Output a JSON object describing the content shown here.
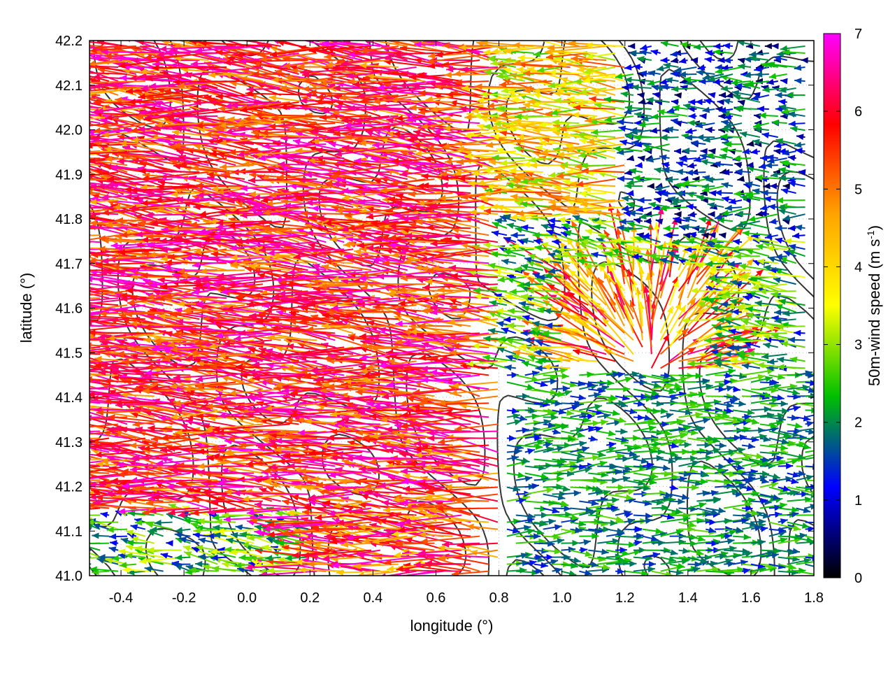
{
  "chart_data": {
    "type": "vector field with contour overlay",
    "xlabel": "longitude (°)",
    "ylabel": "latitude (°)",
    "xlim": [
      -0.5,
      1.8
    ],
    "ylim": [
      41.0,
      42.2
    ],
    "x_ticks": [
      -0.4,
      -0.2,
      0.0,
      0.2,
      0.4,
      0.6,
      0.8,
      1.0,
      1.2,
      1.4,
      1.6,
      1.8
    ],
    "x_tick_labels": [
      "-0.4",
      "-0.2",
      "0.0",
      "0.2",
      "0.4",
      "0.6",
      "0.8",
      "1.0",
      "1.2",
      "1.4",
      "1.6",
      "1.8"
    ],
    "y_ticks": [
      41.0,
      41.1,
      41.2,
      41.3,
      41.4,
      41.5,
      41.6,
      41.7,
      41.8,
      41.9,
      42.0,
      42.1,
      42.2
    ],
    "y_tick_labels": [
      "41.0",
      "41.1",
      "41.2",
      "41.3",
      "41.4",
      "41.5",
      "41.6",
      "41.7",
      "41.8",
      "41.9",
      "42.0",
      "42.1",
      "42.2"
    ],
    "grid": "dotted",
    "colorbar": {
      "label_main": "50m-wind speed (m s",
      "label_sup": "-1",
      "label_end": ")",
      "range": [
        0,
        7
      ],
      "ticks": [
        0,
        1,
        2,
        3,
        4,
        5,
        6,
        7
      ],
      "tick_labels": [
        "0",
        "1",
        "2",
        "3",
        "4",
        "5",
        "6",
        "7"
      ],
      "colors": [
        "#000000",
        "#0000ff",
        "#00c000",
        "#ffff00",
        "#ffa500",
        "#ff0000",
        "#ff00ff"
      ]
    },
    "wind_regions": [
      {
        "region": "west, lat 41.15-42.2",
        "x_range": [
          -0.5,
          0.8
        ],
        "y_range": [
          41.15,
          42.2
        ],
        "u": -6.5,
        "v": 0.6,
        "speed_range": [
          4.5,
          7.0
        ]
      },
      {
        "region": "north-central",
        "x_range": [
          0.8,
          1.2
        ],
        "y_range": [
          41.8,
          42.2
        ],
        "u": -4.0,
        "v": 0.3,
        "speed_range": [
          2.5,
          5.5
        ]
      },
      {
        "region": "northeast",
        "x_range": [
          1.2,
          1.8
        ],
        "y_range": [
          41.75,
          42.2
        ],
        "u": -0.6,
        "v": 0.0,
        "speed_range": [
          0.3,
          2.5
        ]
      },
      {
        "region": "southeast",
        "x_range": [
          0.8,
          1.8
        ],
        "y_range": [
          41.0,
          41.45
        ],
        "u": 2.2,
        "v": 0.0,
        "speed_range": [
          1.2,
          2.8
        ]
      },
      {
        "region": "south-central",
        "x_range": [
          0.2,
          0.8
        ],
        "y_range": [
          41.0,
          41.15
        ],
        "u": -5.5,
        "v": 0.5,
        "speed_range": [
          4.0,
          7.0
        ]
      },
      {
        "region": "divergence near (1.28, 41.45)",
        "x_range": [
          1.0,
          1.5
        ],
        "y_range": [
          41.45,
          41.7
        ],
        "u": 0.0,
        "v": 3.5,
        "speed_range": [
          3.5,
          6.5
        ]
      }
    ],
    "contour_levels": 3
  }
}
